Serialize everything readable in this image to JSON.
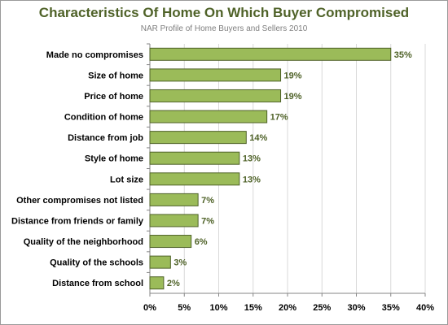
{
  "colors": {
    "title": "#4f6228",
    "bar_fill": "#9bbb59",
    "bar_stroke": "#4f6228",
    "value_label": "#4f6228",
    "gridline": "#d9d9d9",
    "axis": "#868686"
  },
  "chart_data": {
    "type": "bar",
    "orientation": "horizontal",
    "title": "Characteristics Of Home On Which Buyer Compromised",
    "subtitle": "NAR Profile of Home Buyers and Sellers 2010",
    "categories": [
      "Made no compromises",
      "Size of home",
      "Price of home",
      "Condition of home",
      "Distance from job",
      "Style of home",
      "Lot size",
      "Other compromises not listed",
      "Distance from friends or family",
      "Quality of the neighborhood",
      "Quality of the schools",
      "Distance from school"
    ],
    "values": [
      35,
      19,
      19,
      17,
      14,
      13,
      13,
      7,
      7,
      6,
      3,
      2
    ],
    "value_labels": [
      "35%",
      "19%",
      "19%",
      "17%",
      "14%",
      "13%",
      "13%",
      "7%",
      "7%",
      "6%",
      "3%",
      "2%"
    ],
    "xlim": [
      0,
      40
    ],
    "x_ticks": [
      0,
      5,
      10,
      15,
      20,
      25,
      30,
      35,
      40
    ],
    "x_tick_labels": [
      "0%",
      "5%",
      "10%",
      "15%",
      "20%",
      "25%",
      "30%",
      "35%",
      "40%"
    ],
    "grid": true,
    "legend": "none"
  }
}
